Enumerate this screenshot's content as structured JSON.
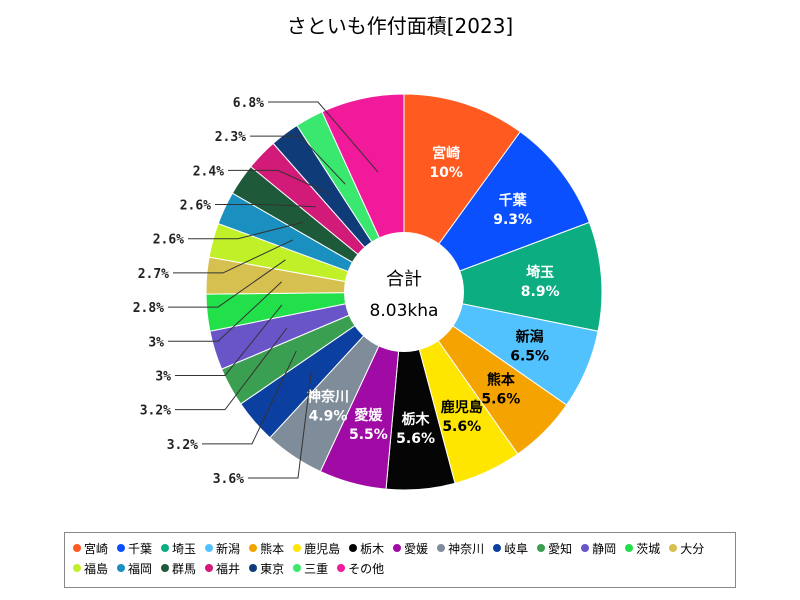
{
  "chart_data": {
    "type": "pie",
    "style": "donut",
    "title": "さといも作付面積[2023]",
    "center_label": {
      "title": "合計",
      "value": "8.03kha"
    },
    "slices": [
      {
        "name": "宮崎",
        "label": "10%",
        "value": 10.0,
        "color": "#ff5a1f"
      },
      {
        "name": "千葉",
        "label": "9.3%",
        "value": 9.3,
        "color": "#0a50ff"
      },
      {
        "name": "埼玉",
        "label": "8.9%",
        "value": 8.9,
        "color": "#0dad82"
      },
      {
        "name": "新潟",
        "label": "6.5%",
        "value": 6.5,
        "color": "#52c2ff"
      },
      {
        "name": "熊本",
        "label": "5.6%",
        "value": 5.6,
        "color": "#f5a300"
      },
      {
        "name": "鹿児島",
        "label": "5.6%",
        "value": 5.6,
        "color": "#ffe600"
      },
      {
        "name": "栃木",
        "label": "5.6%",
        "value": 5.6,
        "color": "#050505"
      },
      {
        "name": "愛媛",
        "label": "5.5%",
        "value": 5.5,
        "color": "#a00aa5"
      },
      {
        "name": "神奈川",
        "label": "4.9%",
        "value": 4.9,
        "color": "#7f8c99"
      },
      {
        "name": "岐阜",
        "label": "3.6%",
        "value": 3.6,
        "color": "#0b3fa0"
      },
      {
        "name": "愛知",
        "label": "3.2%",
        "value": 3.2,
        "color": "#3a9f50"
      },
      {
        "name": "静岡",
        "label": "3.2%",
        "value": 3.2,
        "color": "#6a55c8"
      },
      {
        "name": "茨城",
        "label": "3%",
        "value": 3.0,
        "color": "#22e04a"
      },
      {
        "name": "大分",
        "label": "3%",
        "value": 3.0,
        "color": "#d5c050"
      },
      {
        "name": "福島",
        "label": "2.8%",
        "value": 2.8,
        "color": "#c0f028"
      },
      {
        "name": "福岡",
        "label": "2.7%",
        "value": 2.7,
        "color": "#1a90c0"
      },
      {
        "name": "群馬",
        "label": "2.6%",
        "value": 2.6,
        "color": "#1e5a3a"
      },
      {
        "name": "福井",
        "label": "2.6%",
        "value": 2.6,
        "color": "#d21a78"
      },
      {
        "name": "東京",
        "label": "2.4%",
        "value": 2.4,
        "color": "#0f3c78"
      },
      {
        "name": "三重",
        "label": "2.3%",
        "value": 2.3,
        "color": "#3ae870"
      },
      {
        "name": "その他",
        "label": "6.8%",
        "value": 6.8,
        "color": "#f01a9a"
      }
    ],
    "legend_position": "bottom"
  }
}
